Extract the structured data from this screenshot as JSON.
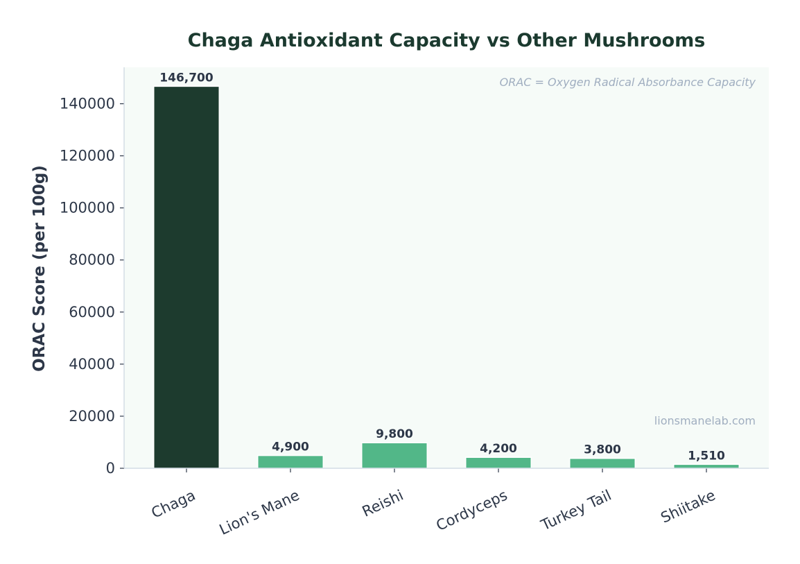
{
  "chart_data": {
    "type": "bar",
    "title": "Chaga Antioxidant Capacity vs Other Mushrooms",
    "xlabel": "",
    "ylabel": "ORAC Score (per 100g)",
    "categories": [
      "Chaga",
      "Lion's Mane",
      "Reishi",
      "Cordyceps",
      "Turkey Tail",
      "Shiitake"
    ],
    "values": [
      146700,
      4900,
      9800,
      4200,
      3800,
      1510
    ],
    "data_labels": [
      "146,700",
      "4,900",
      "9,800",
      "4,200",
      "3,800",
      "1,510"
    ],
    "ylim": [
      0,
      154000
    ],
    "yticks": [
      0,
      20000,
      40000,
      60000,
      80000,
      100000,
      120000,
      140000
    ],
    "grid": false,
    "annotation": "ORAC = Oxygen Radical Absorbance Capacity",
    "watermark": "lionsmanelab.com",
    "colors": {
      "highlight": "#1d3b2e",
      "default": "#52b788",
      "title": "#1b3a2f",
      "text": "#2d3748",
      "plot_bg": "#f6fbf8",
      "annotation": "#a0aec0"
    }
  }
}
